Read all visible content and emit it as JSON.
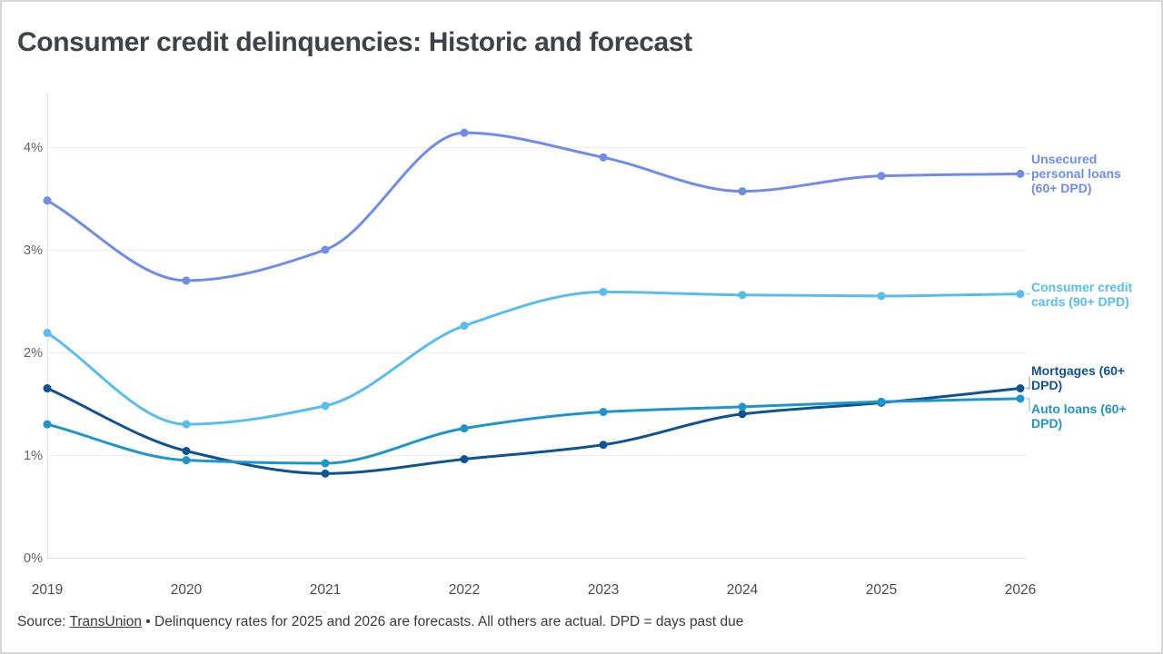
{
  "chart_data": {
    "type": "line",
    "title": "Consumer credit delinquencies: Historic and forecast",
    "x": [
      2019,
      2020,
      2021,
      2022,
      2023,
      2024,
      2025,
      2026
    ],
    "x_tick_labels": [
      "2019",
      "2020",
      "2021",
      "2022",
      "2023",
      "2024",
      "2025",
      "2026"
    ],
    "yticks": [
      0,
      1,
      2,
      3,
      4
    ],
    "ytick_labels": [
      "0%",
      "1%",
      "2%",
      "3%",
      "4%"
    ],
    "ylim": [
      0,
      4.5
    ],
    "grid": "horizontal",
    "legend_position": "right-edge-direct-labels",
    "markers": "dot-every-year",
    "series": [
      {
        "name": "Unsecured personal loans (60+ DPD)",
        "slug": "unsecured-personal-loans",
        "label_lines": [
          "Unsecured",
          "personal loans",
          "(60+ DPD)"
        ],
        "color": "#6f8ce8",
        "values": [
          3.48,
          2.7,
          3.0,
          4.14,
          3.9,
          3.57,
          3.72,
          3.74
        ]
      },
      {
        "name": "Consumer credit cards (90+ DPD)",
        "slug": "consumer-credit-cards",
        "label_lines": [
          "Consumer credit",
          "cards (90+ DPD)"
        ],
        "color": "#57bdef",
        "values": [
          2.19,
          1.3,
          1.48,
          2.26,
          2.59,
          2.56,
          2.55,
          2.57
        ]
      },
      {
        "name": "Mortgages (60+ DPD)",
        "slug": "mortgages",
        "label_lines": [
          "Mortgages (60+",
          "DPD)"
        ],
        "color": "#0e5291",
        "values": [
          1.65,
          1.04,
          0.82,
          0.96,
          1.1,
          1.4,
          1.51,
          1.65
        ]
      },
      {
        "name": "Auto loans (60+ DPD)",
        "slug": "auto-loans",
        "label_lines": [
          "Auto loans (60+",
          "DPD)"
        ],
        "color": "#1d95ca",
        "values": [
          1.3,
          0.95,
          0.92,
          1.26,
          1.42,
          1.47,
          1.52,
          1.55
        ]
      }
    ]
  },
  "footer": {
    "source_prefix": "Source: ",
    "source_link": "TransUnion",
    "note": " • Delinquency rates for 2025 and 2026 are forecasts. All others are actual. DPD = days past due"
  }
}
